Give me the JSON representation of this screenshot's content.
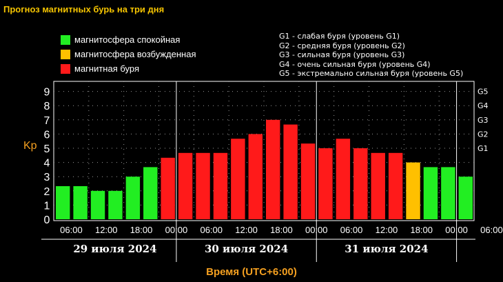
{
  "title": "Прогноз магнитных бурь на три дня",
  "legend": [
    {
      "label": "магнитосфера спокойная",
      "color": "#22ee22"
    },
    {
      "label": "магнитосфера возбужденная",
      "color": "#ffc000"
    },
    {
      "label": "магнитная буря",
      "color": "#ff1a1a"
    }
  ],
  "storm_legend": [
    "G1 - слабая буря (уровень G1)",
    "G2 - средняя буря (уровень G2)",
    "G3 - сильная буря (уровень G3)",
    "G4 - очень сильная буря (уровень G4)",
    "G5 - экстремально сильная буря (уровень G5)"
  ],
  "chart_data": {
    "type": "bar",
    "title": "Прогноз магнитных бурь на три дня",
    "ylabel": "Kp",
    "xlabel": "Время (UTC+6:00)",
    "ylim": [
      0,
      9
    ],
    "y_ticks": [
      "0",
      "1",
      "2",
      "3",
      "4",
      "5",
      "6",
      "7",
      "8",
      "9"
    ],
    "right_ticks": [
      {
        "label": "G1",
        "value": 5
      },
      {
        "label": "G2",
        "value": 6
      },
      {
        "label": "G3",
        "value": 7
      },
      {
        "label": "G4",
        "value": 8
      },
      {
        "label": "G5",
        "value": 9
      }
    ],
    "x_tick_labels": [
      "06:00",
      "12:00",
      "18:00",
      "00:00",
      "06:00",
      "12:00",
      "18:00",
      "00:00",
      "06:00",
      "12:00",
      "18:00",
      "00:00",
      "06:00"
    ],
    "days": [
      "29 июля 2024",
      "30 июля 2024",
      "31 июля 2024"
    ],
    "grid": true,
    "values": [
      2.33,
      2.33,
      2.0,
      2.0,
      3.0,
      3.67,
      4.33,
      4.67,
      4.67,
      4.67,
      5.67,
      6.0,
      7.0,
      6.67,
      5.33,
      5.0,
      5.67,
      5.0,
      4.67,
      4.67,
      4.0,
      3.67,
      3.67,
      3.0
    ],
    "levels": [
      "quiet",
      "quiet",
      "quiet",
      "quiet",
      "quiet",
      "quiet",
      "storm",
      "storm",
      "storm",
      "storm",
      "storm",
      "storm",
      "storm",
      "storm",
      "storm",
      "storm",
      "storm",
      "storm",
      "storm",
      "storm",
      "active",
      "quiet",
      "quiet",
      "quiet"
    ]
  }
}
